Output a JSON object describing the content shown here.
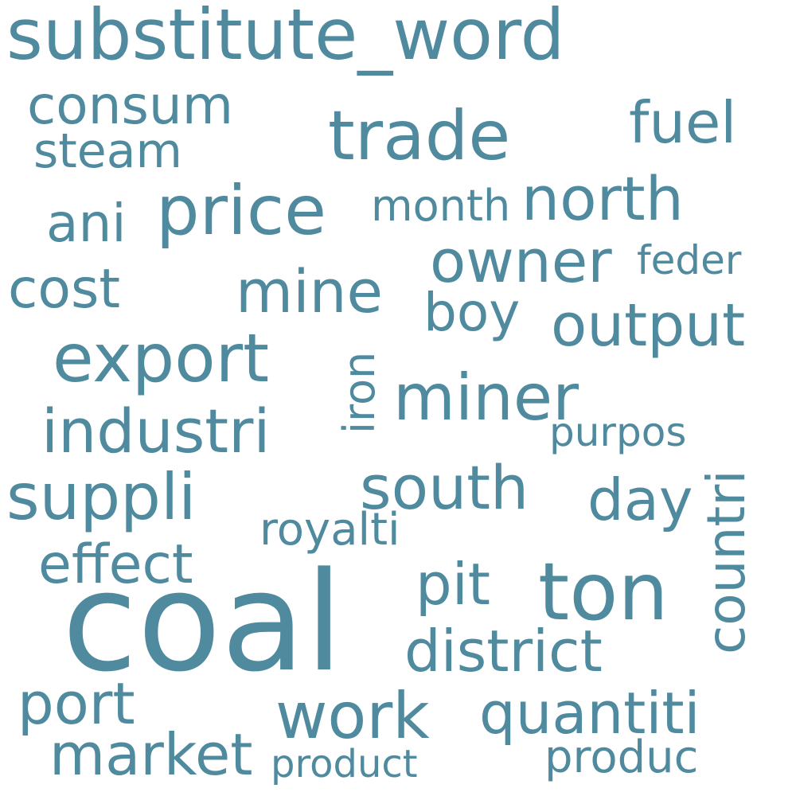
{
  "colors": {
    "word": "#4f8a9e",
    "background": "#ffffff"
  },
  "words": {
    "substitute_word": "substitute_word",
    "consum": "consum",
    "steam": "steam",
    "trade": "trade",
    "fuel": "fuel",
    "ani": "ani",
    "price": "price",
    "month": "month",
    "north": "north",
    "owner": "owner",
    "feder": "feder",
    "cost": "cost",
    "mine": "mine",
    "boy": "boy",
    "output": "output",
    "export": "export",
    "iron": "iron",
    "miner": "miner",
    "countri": "countri",
    "industri": "industri",
    "purpos": "purpos",
    "suppli": "suppli",
    "south": "south",
    "day": "day",
    "royalti": "royalti",
    "effect": "effect",
    "pit": "pit",
    "ton": "ton",
    "coal": "coal",
    "district": "district",
    "port": "port",
    "work": "work",
    "quantiti": "quantiti",
    "market": "market",
    "product": "product",
    "produc": "produc"
  }
}
